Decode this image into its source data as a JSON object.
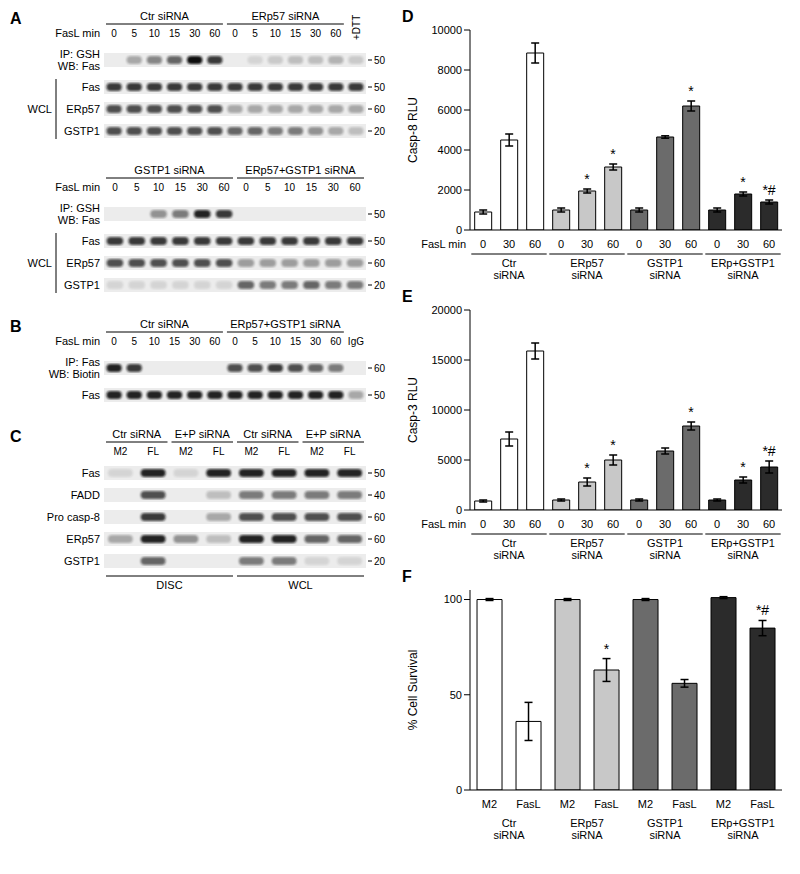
{
  "chart_data": [
    {
      "type": "bar",
      "panel": "D",
      "y_label": "Casp-8 RLU",
      "x_label": "FasL min",
      "categories": [
        "0",
        "30",
        "60",
        "0",
        "30",
        "60",
        "0",
        "30",
        "60",
        "0",
        "30",
        "60"
      ],
      "values": [
        900,
        4500,
        8850,
        1000,
        1950,
        3150,
        1000,
        4650,
        6200,
        1000,
        1800,
        1400
      ],
      "errors": [
        100,
        300,
        500,
        100,
        100,
        150,
        100,
        60,
        250,
        100,
        100,
        100
      ],
      "colors": [
        "#ffffff",
        "#ffffff",
        "#ffffff",
        "#c8c8c8",
        "#c8c8c8",
        "#c8c8c8",
        "#6b6b6b",
        "#6b6b6b",
        "#6b6b6b",
        "#2b2b2b",
        "#2b2b2b",
        "#2b2b2b"
      ],
      "annotations": [
        null,
        null,
        null,
        null,
        "*",
        "*",
        null,
        null,
        "*",
        null,
        "*",
        "*#"
      ],
      "groups": [
        "Ctr siRNA",
        "ERp57 siRNA",
        "GSTP1 siRNA",
        "ERp+GSTP1 siRNA"
      ],
      "ylim": [
        0,
        10000
      ],
      "yticks": [
        0,
        2000,
        4000,
        6000,
        8000,
        10000
      ]
    },
    {
      "type": "bar",
      "panel": "E",
      "y_label": "Casp-3 RLU",
      "x_label": "FasL min",
      "categories": [
        "0",
        "30",
        "60",
        "0",
        "30",
        "60",
        "0",
        "30",
        "60",
        "0",
        "30",
        "60"
      ],
      "values": [
        900,
        7100,
        15900,
        1000,
        2800,
        5000,
        1000,
        5900,
        8400,
        1000,
        3000,
        4300
      ],
      "errors": [
        100,
        700,
        800,
        100,
        400,
        500,
        100,
        300,
        400,
        100,
        300,
        600
      ],
      "colors": [
        "#ffffff",
        "#ffffff",
        "#ffffff",
        "#c8c8c8",
        "#c8c8c8",
        "#c8c8c8",
        "#6b6b6b",
        "#6b6b6b",
        "#6b6b6b",
        "#2b2b2b",
        "#2b2b2b",
        "#2b2b2b"
      ],
      "annotations": [
        null,
        null,
        null,
        null,
        "*",
        "*",
        null,
        null,
        "*",
        null,
        "*",
        "*#"
      ],
      "groups": [
        "Ctr siRNA",
        "ERp57 siRNA",
        "GSTP1 siRNA",
        "ERp+GSTP1 siRNA"
      ],
      "ylim": [
        0,
        20000
      ],
      "yticks": [
        0,
        5000,
        10000,
        15000,
        20000
      ]
    },
    {
      "type": "bar",
      "panel": "F",
      "y_label": "% Cell Survival",
      "categories": [
        "M2",
        "FasL",
        "M2",
        "FasL",
        "M2",
        "FasL",
        "M2",
        "FasL"
      ],
      "values": [
        100,
        36,
        100,
        63,
        100,
        56,
        101,
        85
      ],
      "errors": [
        0.5,
        10,
        0.5,
        6,
        0.5,
        2,
        0.5,
        4
      ],
      "colors": [
        "#ffffff",
        "#ffffff",
        "#c8c8c8",
        "#c8c8c8",
        "#6b6b6b",
        "#6b6b6b",
        "#2b2b2b",
        "#2b2b2b"
      ],
      "annotations": [
        null,
        null,
        null,
        "*",
        null,
        null,
        null,
        "*#"
      ],
      "groups": [
        "Ctr siRNA",
        "ERp57 siRNA",
        "GSTP1 siRNA",
        "ERp+GSTP1 siRNA"
      ],
      "ylim": [
        0,
        105
      ],
      "yticks": [
        0,
        50,
        100
      ]
    }
  ],
  "blots": [
    {
      "panel": "A",
      "lane_title": "FasL min",
      "headers": [
        {
          "label": "Ctr siRNA",
          "span": 6
        },
        {
          "label": "ERp57 siRNA",
          "span": 6
        }
      ],
      "lanes": [
        "0",
        "5",
        "10",
        "15",
        "30",
        "60",
        "0",
        "5",
        "10",
        "15",
        "30",
        "60",
        "+DTT"
      ],
      "rows": [
        {
          "label": [
            "IP: GSH",
            "WB: Fas"
          ],
          "mw": 50,
          "intensity": [
            0,
            0.3,
            0.45,
            0.6,
            1,
            0.8,
            0,
            0.1,
            0.15,
            0.2,
            0.2,
            0.25,
            0.15
          ]
        },
        {
          "label": [
            "Fas"
          ],
          "section": "WCL",
          "mw": 50,
          "intensity": [
            0.8,
            0.8,
            0.8,
            0.8,
            0.8,
            0.8,
            0.8,
            0.8,
            0.8,
            0.8,
            0.8,
            0.8,
            0.8
          ]
        },
        {
          "label": [
            "ERp57"
          ],
          "section": "WCL",
          "mw": 60,
          "intensity": [
            0.7,
            0.7,
            0.7,
            0.7,
            0.7,
            0.7,
            0.3,
            0.3,
            0.3,
            0.3,
            0.3,
            0.3,
            0.3
          ]
        },
        {
          "label": [
            "GSTP1"
          ],
          "section": "WCL",
          "mw": 20,
          "intensity": [
            0.7,
            0.7,
            0.7,
            0.7,
            0.7,
            0.7,
            0.6,
            0.6,
            0.5,
            0.5,
            0.4,
            0.3,
            0.2
          ]
        }
      ]
    },
    {
      "lane_title": "FasL min",
      "headers": [
        {
          "label": "GSTP1 siRNA",
          "span": 6
        },
        {
          "label": "ERp57+GSTP1 siRNA",
          "span": 6
        }
      ],
      "lanes": [
        "0",
        "5",
        "10",
        "15",
        "30",
        "60",
        "0",
        "5",
        "10",
        "15",
        "30",
        "60"
      ],
      "rows": [
        {
          "label": [
            "IP: GSH",
            "WB: Fas"
          ],
          "mw": 50,
          "intensity": [
            0,
            0,
            0.4,
            0.5,
            0.9,
            0.8,
            0,
            0,
            0,
            0,
            0,
            0
          ]
        },
        {
          "label": [
            "Fas"
          ],
          "section": "WCL",
          "mw": 50,
          "intensity": [
            0.8,
            0.8,
            0.8,
            0.8,
            0.8,
            0.8,
            0.8,
            0.8,
            0.8,
            0.8,
            0.8,
            0.8
          ]
        },
        {
          "label": [
            "ERp57"
          ],
          "section": "WCL",
          "mw": 60,
          "intensity": [
            0.7,
            0.7,
            0.7,
            0.7,
            0.7,
            0.7,
            0.35,
            0.35,
            0.35,
            0.35,
            0.35,
            0.35
          ]
        },
        {
          "label": [
            "GSTP1"
          ],
          "section": "WCL",
          "mw": 20,
          "intensity": [
            0.1,
            0.1,
            0.1,
            0.1,
            0.1,
            0.1,
            0.6,
            0.5,
            0.5,
            0.6,
            0.5,
            0.5
          ]
        }
      ]
    },
    {
      "panel": "B",
      "lane_title": "FasL min",
      "headers": [
        {
          "label": "Ctr siRNA",
          "span": 6
        },
        {
          "label": "ERp57+GSTP1 siRNA",
          "span": 6
        }
      ],
      "lanes": [
        "0",
        "5",
        "10",
        "15",
        "30",
        "60",
        "0",
        "5",
        "10",
        "15",
        "30",
        "60",
        "IgG"
      ],
      "rows": [
        {
          "label": [
            "IP: Fas",
            "WB: Biotin"
          ],
          "mw": 60,
          "intensity": [
            0.9,
            0.8,
            0,
            0,
            0,
            0,
            0.7,
            0.7,
            0.8,
            0.7,
            0.6,
            0.5,
            0
          ]
        },
        {
          "label": [
            "Fas"
          ],
          "mw": 50,
          "intensity": [
            0.9,
            0.9,
            0.9,
            0.9,
            0.9,
            0.9,
            0.9,
            0.9,
            0.9,
            0.9,
            0.9,
            0.9,
            0.3
          ]
        }
      ]
    },
    {
      "panel": "C",
      "headers": [
        {
          "label": "Ctr siRNA",
          "span": 2
        },
        {
          "label": "E+P siRNA",
          "span": 2
        },
        {
          "label": "Ctr siRNA",
          "span": 2
        },
        {
          "label": "E+P siRNA",
          "span": 2
        }
      ],
      "lanes": [
        "M2",
        "FL",
        "M2",
        "FL",
        "M2",
        "FL",
        "M2",
        "FL"
      ],
      "rows": [
        {
          "label": [
            "Fas"
          ],
          "mw": 50,
          "intensity": [
            0.1,
            0.9,
            0.1,
            0.9,
            0.9,
            0.9,
            0.9,
            0.9
          ]
        },
        {
          "label": [
            "FADD"
          ],
          "mw": 40,
          "intensity": [
            0,
            0.7,
            0,
            0.2,
            0.5,
            0.5,
            0.5,
            0.5
          ]
        },
        {
          "label": [
            "Pro casp-8"
          ],
          "mw": 60,
          "intensity": [
            0,
            0.8,
            0,
            0.3,
            0.7,
            0.7,
            0.7,
            0.7
          ]
        },
        {
          "label": [
            "ERp57"
          ],
          "mw": 60,
          "intensity": [
            0.3,
            0.9,
            0.4,
            0.2,
            0.9,
            0.9,
            0.6,
            0.6
          ]
        },
        {
          "label": [
            "GSTP1"
          ],
          "mw": 20,
          "intensity": [
            0,
            0.6,
            0,
            0,
            0.5,
            0.5,
            0.1,
            0.1
          ]
        }
      ],
      "footers": [
        {
          "label": "DISC",
          "span": 4
        },
        {
          "label": "WCL",
          "span": 4
        }
      ]
    }
  ]
}
